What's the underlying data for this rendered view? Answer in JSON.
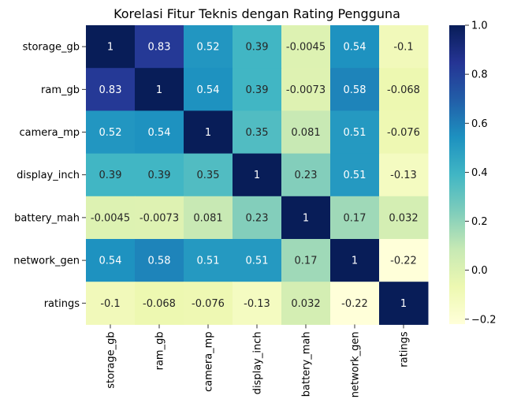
{
  "chart_data": {
    "type": "heatmap",
    "title": "Korelasi Fitur Teknis dengan Rating Pengguna",
    "xlabel": "",
    "ylabel": "",
    "rows": [
      "storage_gb",
      "ram_gb",
      "camera_mp",
      "display_inch",
      "battery_mah",
      "network_gen",
      "ratings"
    ],
    "columns": [
      "storage_gb",
      "ram_gb",
      "camera_mp",
      "display_inch",
      "battery_mah",
      "network_gen",
      "ratings"
    ],
    "values": [
      [
        1,
        0.83,
        0.52,
        0.39,
        -0.0045,
        0.54,
        -0.1
      ],
      [
        0.83,
        1,
        0.54,
        0.39,
        -0.0073,
        0.58,
        -0.068
      ],
      [
        0.52,
        0.54,
        1,
        0.35,
        0.081,
        0.51,
        -0.076
      ],
      [
        0.39,
        0.39,
        0.35,
        1,
        0.23,
        0.51,
        -0.13
      ],
      [
        -0.0045,
        -0.0073,
        0.081,
        0.23,
        1,
        0.17,
        0.032
      ],
      [
        0.54,
        0.58,
        0.51,
        0.51,
        0.17,
        1,
        -0.22
      ],
      [
        -0.1,
        -0.068,
        -0.076,
        -0.13,
        0.032,
        -0.22,
        1
      ]
    ],
    "cell_labels": [
      [
        "1",
        "0.83",
        "0.52",
        "0.39",
        "-0.0045",
        "0.54",
        "-0.1"
      ],
      [
        "0.83",
        "1",
        "0.54",
        "0.39",
        "-0.0073",
        "0.58",
        "-0.068"
      ],
      [
        "0.52",
        "0.54",
        "1",
        "0.35",
        "0.081",
        "0.51",
        "-0.076"
      ],
      [
        "0.39",
        "0.39",
        "0.35",
        "1",
        "0.23",
        "0.51",
        "-0.13"
      ],
      [
        "-0.0045",
        "-0.0073",
        "0.081",
        "0.23",
        "1",
        "0.17",
        "0.032"
      ],
      [
        "0.54",
        "0.58",
        "0.51",
        "0.51",
        "0.17",
        "1",
        "-0.22"
      ],
      [
        "-0.1",
        "-0.068",
        "-0.076",
        "-0.13",
        "0.032",
        "-0.22",
        "1"
      ]
    ],
    "colorbar": {
      "range": [
        -0.22,
        1
      ],
      "ticks": [
        -0.2,
        0.0,
        0.2,
        0.4,
        0.6,
        0.8,
        1.0
      ],
      "tick_labels": [
        "−0.2",
        "0.0",
        "0.2",
        "0.4",
        "0.6",
        "0.8",
        "1.0"
      ]
    },
    "colormap": "YlGnBu",
    "colormap_stops": [
      "#ffffd9",
      "#edf8b1",
      "#c7e9b4",
      "#7fcdbb",
      "#41b6c4",
      "#1d91c0",
      "#225ea8",
      "#253494",
      "#081d58"
    ],
    "grid": false,
    "legend": "colorbar right"
  }
}
